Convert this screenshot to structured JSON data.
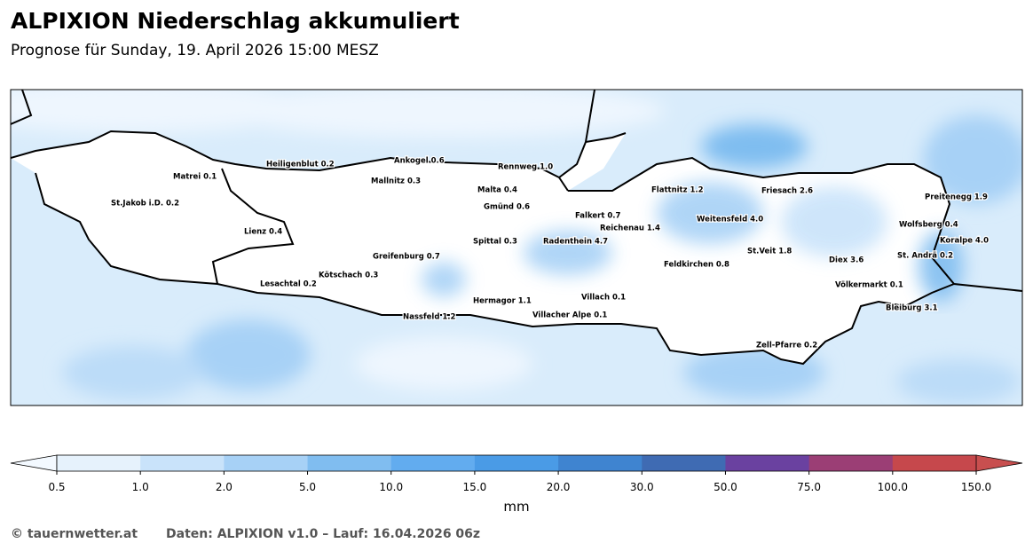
{
  "header": {
    "title": "ALPIXION Niederschlag akkumuliert",
    "subtitle": "Prognose für Sunday, 19. April 2026 15:00 MESZ"
  },
  "map": {
    "stations": [
      "Heiligenblut 0.2",
      "Ankogel 0.6",
      "Rennweg 1.0",
      "Matrei 0.1",
      "Mallnitz 0.3",
      "Malta 0.4",
      "Flattnitz 1.2",
      "Friesach 2.6",
      "Preitenegg 1.9",
      "St.Jakob i.D. 0.2",
      "Gmünd 0.6",
      "Falkert 0.7",
      "Weitensfeld 4.0",
      "Wolfsberg 0.4",
      "Reichenau 1.4",
      "Lienz 0.4",
      "Spittal 0.3",
      "Radenthein 4.7",
      "Koralpe 4.0",
      "St.Veit 1.8",
      "Greifenburg 0.7",
      "St. Andrä 0.2",
      "Diex 3.6",
      "Feldkirchen 0.8",
      "Kötschach 0.3",
      "Lesachtal 0.2",
      "Völkermarkt 0.1",
      "Villach 0.1",
      "Hermagor 1.1",
      "Bleiburg 3.1",
      "Villacher Alpe 0.1",
      "Nassfeld 1.2",
      "Zell-Pfarre 0.2"
    ]
  },
  "colorbar": {
    "label": "mm",
    "ticks": [
      "0.5",
      "1.0",
      "2.0",
      "5.0",
      "10.0",
      "15.0",
      "20.0",
      "30.0",
      "50.0",
      "75.0",
      "100.0",
      "150.0"
    ],
    "colors": [
      "#e6f2fc",
      "#c9e3fa",
      "#a7d1f6",
      "#80bdf0",
      "#62acef",
      "#4a9be6",
      "#3f84d0",
      "#3f6bb3",
      "#6a41a0",
      "#9b3e75",
      "#c6484c"
    ],
    "under_color": "#f3f9ff",
    "over_color": "#c84f4f"
  },
  "footer": {
    "credit": "© tauernwetter.at",
    "source": "Daten: ALPIXION v1.0 – Lauf: 16.04.2026 06z"
  }
}
